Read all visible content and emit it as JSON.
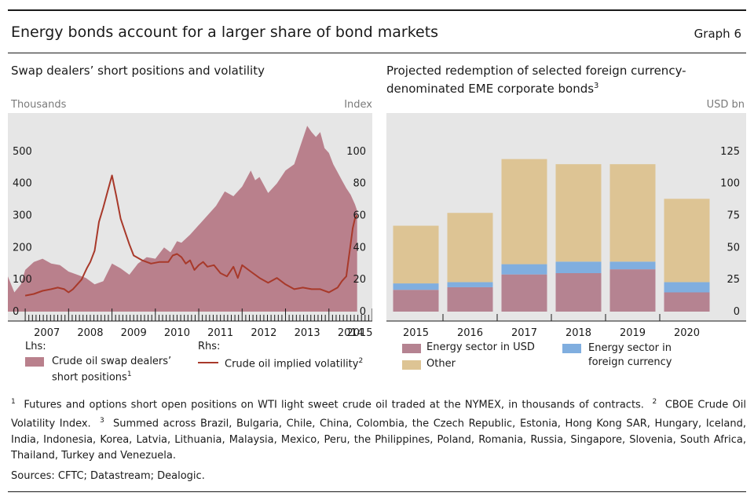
{
  "header": {
    "title": "Energy bonds account for a larger share of bond markets",
    "graph_number": "Graph 6"
  },
  "left_panel": {
    "title": "Swap dealers’ short positions and volatility",
    "left_unit": "Thousands",
    "right_unit": "Index",
    "lhs_label": "Lhs:",
    "rhs_label": "Rhs:",
    "area_legend_line1": "Crude oil swap dealers’",
    "area_legend_line2": "short positions",
    "area_legend_sup": "1",
    "line_legend": "Crude oil implied volatility",
    "line_legend_sup": "2"
  },
  "right_panel": {
    "title_line1": "Projected redemption of selected foreign currency-",
    "title_line2": "denominated EME corporate bonds",
    "title_sup": "3",
    "unit": "USD bn"
  },
  "footnotes": {
    "n1": "1",
    "t1": "Futures and options short open positions on WTI light sweet crude oil traded at the NYMEX, in thousands of contracts.",
    "n2": "2",
    "t2": "CBOE Crude Oil Volatility Index.",
    "n3": "3",
    "t3": "Summed across Brazil, Bulgaria, Chile, China, Colombia, the Czech Republic, Estonia, Hong Kong SAR, Hungary, Iceland, India, Indonesia, Korea, Latvia, Lithuania, Malaysia, Mexico, Peru, the Philippines, Poland, Romania, Russia, Singapore, Slovenia, South Africa, Thailand, Turkey and Venezuela.",
    "sources": "Sources: CFTC; Datastream; Dealogic."
  },
  "chart_data": [
    {
      "type": "area",
      "title": "Swap dealers’ short positions and volatility",
      "x_ticks": [
        "2007",
        "2008",
        "2009",
        "2010",
        "2011",
        "2012",
        "2013",
        "2014",
        "2015"
      ],
      "xlim": [
        2006.6,
        2015.0
      ],
      "y_left": {
        "ticks": [
          "0",
          "100",
          "200",
          "300",
          "400",
          "500"
        ],
        "lim": [
          0,
          600
        ],
        "unit": "Thousands"
      },
      "y_right": {
        "ticks": [
          "0",
          "20",
          "40",
          "60",
          "80",
          "100"
        ],
        "lim": [
          0,
          120
        ],
        "unit": "Index"
      },
      "grid": false,
      "series": [
        {
          "name": "Crude oil swap dealers’ short positions",
          "axis": "left",
          "kind": "area",
          "color": "#b9808c",
          "x": [
            2006.6,
            2006.75,
            2006.9,
            2007.0,
            2007.2,
            2007.4,
            2007.6,
            2007.8,
            2008.0,
            2008.2,
            2008.4,
            2008.5,
            2008.6,
            2008.8,
            2009.0,
            2009.2,
            2009.4,
            2009.6,
            2009.8,
            2010.0,
            2010.2,
            2010.35,
            2010.5,
            2010.6,
            2010.8,
            2011.0,
            2011.2,
            2011.4,
            2011.6,
            2011.8,
            2012.0,
            2012.2,
            2012.3,
            2012.4,
            2012.6,
            2012.8,
            2013.0,
            2013.2,
            2013.4,
            2013.5,
            2013.6,
            2013.7,
            2013.8,
            2013.9,
            2014.0,
            2014.1,
            2014.2,
            2014.3,
            2014.4,
            2014.5,
            2014.6,
            2014.65
          ],
          "values": [
            110,
            60,
            85,
            130,
            155,
            165,
            150,
            145,
            125,
            115,
            105,
            95,
            85,
            95,
            150,
            135,
            115,
            150,
            170,
            165,
            200,
            185,
            220,
            215,
            240,
            270,
            300,
            330,
            375,
            360,
            390,
            440,
            410,
            420,
            370,
            400,
            440,
            460,
            540,
            580,
            560,
            545,
            560,
            510,
            495,
            460,
            435,
            410,
            385,
            365,
            335,
            315
          ]
        },
        {
          "name": "Crude oil implied volatility",
          "axis": "right",
          "kind": "line",
          "color": "#a8392a",
          "x": [
            2007.0,
            2007.2,
            2007.4,
            2007.6,
            2007.75,
            2007.9,
            2008.0,
            2008.1,
            2008.2,
            2008.3,
            2008.35,
            2008.42,
            2008.5,
            2008.6,
            2008.7,
            2008.8,
            2008.9,
            2009.0,
            2009.1,
            2009.2,
            2009.3,
            2009.4,
            2009.5,
            2009.7,
            2009.9,
            2010.1,
            2010.3,
            2010.4,
            2010.5,
            2010.6,
            2010.7,
            2010.8,
            2010.9,
            2011.0,
            2011.1,
            2011.2,
            2011.35,
            2011.5,
            2011.65,
            2011.8,
            2011.9,
            2012.0,
            2012.2,
            2012.4,
            2012.6,
            2012.8,
            2013.0,
            2013.2,
            2013.4,
            2013.6,
            2013.8,
            2014.0,
            2014.2,
            2014.3,
            2014.4,
            2014.45,
            2014.5,
            2014.55,
            2014.6,
            2014.65
          ],
          "values": [
            10,
            11,
            13,
            14,
            15,
            14,
            12,
            14,
            17,
            20,
            23,
            27,
            31,
            38,
            56,
            65,
            75,
            85,
            72,
            58,
            50,
            42,
            35,
            32,
            30,
            31,
            31,
            35,
            36,
            34,
            30,
            32,
            26,
            29,
            31,
            28,
            29,
            24,
            22,
            28,
            21,
            29,
            25,
            21,
            18,
            21,
            17,
            14,
            15,
            14,
            14,
            12,
            15,
            19,
            22,
            32,
            42,
            52,
            58,
            60
          ]
        }
      ]
    },
    {
      "type": "bar",
      "stacked": true,
      "title": "Projected redemption of selected foreign currency-denominated EME corporate bonds",
      "categories": [
        "2015",
        "2016",
        "2017",
        "2018",
        "2019",
        "2020"
      ],
      "ylim": [
        0,
        150
      ],
      "y_ticks": [
        "0",
        "25",
        "50",
        "75",
        "100",
        "125"
      ],
      "ylabel": "USD bn",
      "grid": false,
      "series": [
        {
          "name": "Energy sector in USD",
          "color": "#b58391",
          "values": [
            17,
            19,
            29,
            30,
            33,
            15
          ]
        },
        {
          "name": "Energy sector in foreign currency",
          "color": "#80aedf",
          "values": [
            5,
            4,
            8,
            9,
            6,
            8
          ]
        },
        {
          "name": "Other",
          "color": "#ddc494",
          "values": [
            45,
            54,
            82,
            76,
            76,
            65
          ]
        }
      ]
    }
  ]
}
